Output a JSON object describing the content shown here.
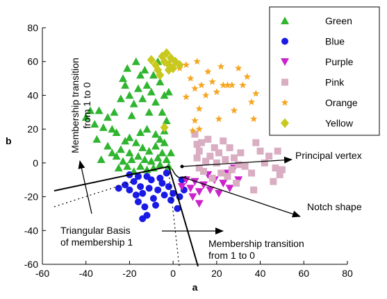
{
  "chart_data": {
    "type": "scatter",
    "xlabel": "a",
    "ylabel": "b",
    "xlim": [
      -60,
      80
    ],
    "ylim": [
      -60,
      80
    ],
    "xticks": [
      -60,
      -40,
      -20,
      0,
      20,
      40,
      60,
      80
    ],
    "yticks": [
      -60,
      -40,
      -20,
      0,
      20,
      40,
      60,
      80
    ],
    "grid": false,
    "legend_position": "top-right",
    "series": [
      {
        "name": "Green",
        "marker": "triangle-up",
        "color": "#2fb52f",
        "points": [
          [
            -40,
            27
          ],
          [
            -38,
            31
          ],
          [
            -36,
            23
          ],
          [
            -34,
            31
          ],
          [
            -32,
            21
          ],
          [
            -35,
            14
          ],
          [
            -30,
            27
          ],
          [
            -28,
            20
          ],
          [
            -27,
            30
          ],
          [
            -26,
            18
          ],
          [
            -24,
            38
          ],
          [
            -23,
            50
          ],
          [
            -22,
            46
          ],
          [
            -21,
            56
          ],
          [
            -20,
            40
          ],
          [
            -19,
            28
          ],
          [
            -18,
            35
          ],
          [
            -17,
            60
          ],
          [
            -16,
            44
          ],
          [
            -15,
            52
          ],
          [
            -14,
            38
          ],
          [
            -13,
            55
          ],
          [
            -12,
            46
          ],
          [
            -11,
            30
          ],
          [
            -10,
            42
          ],
          [
            -9,
            52
          ],
          [
            -8,
            36
          ],
          [
            -7,
            60
          ],
          [
            -6,
            48
          ],
          [
            -5,
            30
          ],
          [
            -4,
            40
          ],
          [
            -3,
            25
          ],
          [
            -2,
            42
          ],
          [
            -26,
            4
          ],
          [
            -25,
            -3
          ],
          [
            -24,
            8
          ],
          [
            -23,
            1
          ],
          [
            -22,
            13
          ],
          [
            -21,
            -2
          ],
          [
            -20,
            6
          ],
          [
            -19,
            2
          ],
          [
            -18,
            -5
          ],
          [
            -17,
            12
          ],
          [
            -16,
            4
          ],
          [
            -15,
            -2
          ],
          [
            -14,
            9
          ],
          [
            -13,
            2
          ],
          [
            -12,
            -4
          ],
          [
            -11,
            7
          ],
          [
            -10,
            1
          ],
          [
            -9,
            -3
          ],
          [
            -8,
            10
          ],
          [
            -7,
            3
          ],
          [
            -6,
            -1
          ],
          [
            -5,
            6
          ],
          [
            -4,
            12
          ],
          [
            -3,
            2
          ],
          [
            -2,
            -2
          ],
          [
            -1,
            6
          ],
          [
            -20,
            15
          ],
          [
            -15,
            18
          ],
          [
            -12,
            20
          ],
          [
            -8,
            17
          ],
          [
            -30,
            10
          ],
          [
            -28,
            6
          ],
          [
            -33,
            2
          ],
          [
            -6,
            14
          ],
          [
            -4,
            19
          ]
        ]
      },
      {
        "name": "Blue",
        "marker": "circle",
        "color": "#1a1ae6",
        "points": [
          [
            -25,
            -15
          ],
          [
            -22,
            -13
          ],
          [
            -20,
            -16
          ],
          [
            -18,
            -11
          ],
          [
            -17,
            -19
          ],
          [
            -16,
            -23
          ],
          [
            -15,
            -14
          ],
          [
            -14,
            -18
          ],
          [
            -14,
            -33
          ],
          [
            -13,
            -26
          ],
          [
            -12,
            -31
          ],
          [
            -11,
            -15
          ],
          [
            -10,
            -10
          ],
          [
            -9,
            -21
          ],
          [
            -8,
            -25
          ],
          [
            -7,
            -16
          ],
          [
            -6,
            -9
          ],
          [
            -5,
            -12
          ],
          [
            -4,
            -19
          ],
          [
            -3,
            -6
          ],
          [
            -2,
            -14
          ],
          [
            -1,
            -22
          ],
          [
            0,
            -18
          ],
          [
            2,
            -27
          ],
          [
            3,
            -20
          ],
          [
            4,
            -10
          ],
          [
            5,
            -16
          ],
          [
            -20,
            -7
          ],
          [
            -16,
            -8
          ],
          [
            -12,
            -8
          ]
        ]
      },
      {
        "name": "Purple",
        "marker": "triangle-down",
        "color": "#cc22cc",
        "points": [
          [
            4,
            -14
          ],
          [
            6,
            -10
          ],
          [
            8,
            -15
          ],
          [
            9,
            -20
          ],
          [
            10,
            -11
          ],
          [
            12,
            -17
          ],
          [
            14,
            -13
          ],
          [
            16,
            -7
          ],
          [
            17,
            -16
          ],
          [
            19,
            -10
          ],
          [
            21,
            -18
          ],
          [
            23,
            -12
          ],
          [
            25,
            -6
          ],
          [
            26,
            -15
          ],
          [
            28,
            -3
          ],
          [
            30,
            -10
          ],
          [
            12,
            -24
          ]
        ]
      },
      {
        "name": "Pink",
        "marker": "square",
        "color": "#d9aec2",
        "points": [
          [
            10,
            17
          ],
          [
            11,
            11
          ],
          [
            11,
            3
          ],
          [
            12,
            -3
          ],
          [
            12,
            7
          ],
          [
            13,
            12
          ],
          [
            14,
            -5
          ],
          [
            15,
            1
          ],
          [
            16,
            14
          ],
          [
            17,
            4
          ],
          [
            18,
            -9
          ],
          [
            19,
            9
          ],
          [
            20,
            0
          ],
          [
            21,
            6
          ],
          [
            22,
            -6
          ],
          [
            23,
            13
          ],
          [
            24,
            2
          ],
          [
            25,
            -8
          ],
          [
            26,
            9
          ],
          [
            27,
            -4
          ],
          [
            28,
            3
          ],
          [
            29,
            -12
          ],
          [
            30,
            -1
          ],
          [
            31,
            6
          ],
          [
            33,
            -2
          ],
          [
            36,
            -6
          ],
          [
            37,
            -16
          ],
          [
            38,
            12
          ],
          [
            40,
            7
          ],
          [
            42,
            0
          ],
          [
            44,
            4
          ],
          [
            46,
            -11
          ],
          [
            47,
            -3
          ],
          [
            48,
            7
          ],
          [
            49,
            -7
          ],
          [
            50,
            -4
          ]
        ]
      },
      {
        "name": "Orange",
        "marker": "star",
        "color": "#f5a623",
        "points": [
          [
            3,
            56
          ],
          [
            6,
            58
          ],
          [
            8,
            50
          ],
          [
            10,
            44
          ],
          [
            11,
            60
          ],
          [
            12,
            32
          ],
          [
            13,
            46
          ],
          [
            15,
            40
          ],
          [
            16,
            54
          ],
          [
            18,
            48
          ],
          [
            20,
            42
          ],
          [
            21,
            26
          ],
          [
            22,
            57
          ],
          [
            23,
            46
          ],
          [
            25,
            46
          ],
          [
            27,
            46
          ],
          [
            28,
            31
          ],
          [
            30,
            56
          ],
          [
            32,
            46
          ],
          [
            34,
            51
          ],
          [
            36,
            36
          ],
          [
            37,
            26
          ],
          [
            38,
            41
          ],
          [
            10,
            25
          ],
          [
            6,
            39
          ],
          [
            9,
            19
          ],
          [
            12,
            20
          ]
        ]
      },
      {
        "name": "Yellow",
        "marker": "diamond",
        "color": "#c8c81e",
        "points": [
          [
            -10,
            61
          ],
          [
            -8,
            58
          ],
          [
            -7,
            55
          ],
          [
            -5,
            63
          ],
          [
            -4,
            60
          ],
          [
            -3,
            65
          ],
          [
            -2,
            58
          ],
          [
            -1,
            62
          ],
          [
            0,
            56
          ],
          [
            1,
            60
          ],
          [
            3,
            58
          ],
          [
            -6,
            52
          ],
          [
            -2,
            55
          ],
          [
            -4,
            21
          ]
        ]
      }
    ],
    "annotations": [
      {
        "text_lines": [
          "Membership transition",
          "from 1 to 0"
        ],
        "orientation": "vertical"
      },
      {
        "text_lines": [
          "Triangular Basis",
          "of membership 1"
        ]
      },
      {
        "text_lines": [
          "Membership transition",
          "from 1 to 0"
        ]
      },
      {
        "text_lines": [
          "Principal vertex"
        ]
      },
      {
        "text_lines": [
          "Notch shape"
        ]
      }
    ]
  }
}
